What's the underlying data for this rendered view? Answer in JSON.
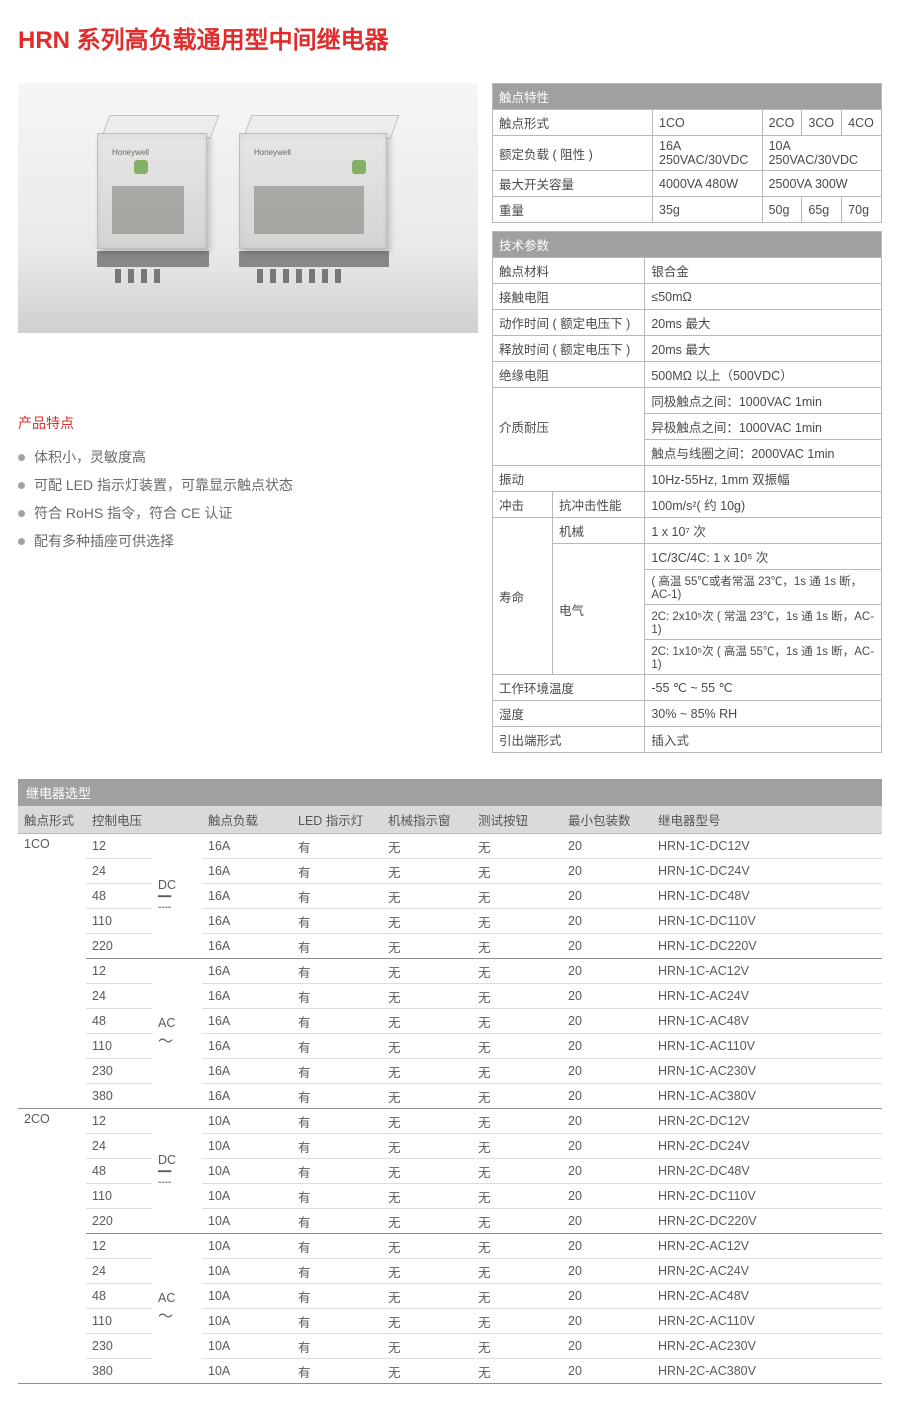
{
  "title": "HRN 系列高负载通用型中间继电器",
  "product_label": "Honeywell",
  "features": {
    "heading": "产品特点",
    "items": [
      "体积小，灵敏度高",
      "可配 LED 指示灯装置，可靠显示触点状态",
      "符合 RoHS 指令，符合 CE 认证",
      "配有多种插座可供选择"
    ]
  },
  "colors": {
    "accent": "#e22b2b",
    "header_bg": "#a0a0a0",
    "subheader_bg": "#dadada",
    "border": "#b8b8b8",
    "text": "#4a4a4a"
  },
  "contact_spec": {
    "header": "触点特性",
    "rows": [
      {
        "label": "触点形式",
        "c1": "1CO",
        "c2": "2CO",
        "c3": "3CO",
        "c4": "4CO"
      },
      {
        "label": "额定负载 ( 阻性 )",
        "left": "16A 250VAC/30VDC",
        "right": "10A 250VAC/30VDC"
      },
      {
        "label": "最大开关容量",
        "left": "4000VA 480W",
        "right": "2500VA 300W"
      },
      {
        "label": "重量",
        "c1": "35g",
        "c2": "50g",
        "c3": "65g",
        "c4": "70g"
      }
    ]
  },
  "tech_spec": {
    "header": "技术参数",
    "material": {
      "label": "触点材料",
      "val": "银合金"
    },
    "contact_res": {
      "label": "接触电阻",
      "val": "≤50mΩ"
    },
    "op_time": {
      "label": "动作时间 ( 额定电压下 )",
      "val": "20ms 最大"
    },
    "rel_time": {
      "label": "释放时间 ( 额定电压下 )",
      "val": "20ms 最大"
    },
    "insulation": {
      "label": "绝缘电阻",
      "val": "500MΩ 以上（500VDC）"
    },
    "dielectric": {
      "label": "介质耐压",
      "v1": "同极触点之间：1000VAC 1min",
      "v2": "异极触点之间：1000VAC 1min",
      "v3": "触点与线圈之间：2000VAC 1min"
    },
    "vibration": {
      "label": "振动",
      "val": "10Hz-55Hz, 1mm 双振幅"
    },
    "shock": {
      "label": "冲击",
      "sub": "抗冲击性能",
      "val": "100m/s²( 约 10g)"
    },
    "life": {
      "label": "寿命",
      "mech_label": "机械",
      "mech_val": "1 x 10⁷ 次",
      "elec_label": "电气",
      "elec_v1": "1C/3C/4C: 1 x 10⁵ 次",
      "elec_v2": "( 高温 55℃或者常温 23℃，1s 通 1s 断，AC-1)",
      "elec_v3": "2C: 2x10⁵次 ( 常温 23℃，1s 通 1s 断，AC-1)",
      "elec_v4": "2C: 1x10⁵次 ( 高温 55℃，1s 通 1s 断，AC-1)"
    },
    "ambient": {
      "label": "工作环境温度",
      "val": "-55 ℃ ~ 55 ℃"
    },
    "humidity": {
      "label": "湿度",
      "val": "30% ~ 85% RH"
    },
    "terminal": {
      "label": "引出端形式",
      "val": "插入式"
    }
  },
  "selection": {
    "header": "继电器选型",
    "columns": [
      "触点形式",
      "控制电压",
      "",
      "触点负载",
      "LED 指示灯",
      "机械指示窗",
      "测试按钮",
      "最小包装数",
      "继电器型号"
    ],
    "groups": [
      {
        "form": "1CO",
        "blocks": [
          {
            "type": "DC",
            "sym": "⎓",
            "rows": [
              {
                "v": "12",
                "load": "16A",
                "led": "有",
                "win": "无",
                "btn": "无",
                "pack": "20",
                "model": "HRN-1C-DC12V"
              },
              {
                "v": "24",
                "load": "16A",
                "led": "有",
                "win": "无",
                "btn": "无",
                "pack": "20",
                "model": "HRN-1C-DC24V"
              },
              {
                "v": "48",
                "load": "16A",
                "led": "有",
                "win": "无",
                "btn": "无",
                "pack": "20",
                "model": "HRN-1C-DC48V"
              },
              {
                "v": "110",
                "load": "16A",
                "led": "有",
                "win": "无",
                "btn": "无",
                "pack": "20",
                "model": "HRN-1C-DC110V"
              },
              {
                "v": "220",
                "load": "16A",
                "led": "有",
                "win": "无",
                "btn": "无",
                "pack": "20",
                "model": "HRN-1C-DC220V"
              }
            ]
          },
          {
            "type": "AC",
            "sym": "～",
            "rows": [
              {
                "v": "12",
                "load": "16A",
                "led": "有",
                "win": "无",
                "btn": "无",
                "pack": "20",
                "model": "HRN-1C-AC12V"
              },
              {
                "v": "24",
                "load": "16A",
                "led": "有",
                "win": "无",
                "btn": "无",
                "pack": "20",
                "model": "HRN-1C-AC24V"
              },
              {
                "v": "48",
                "load": "16A",
                "led": "有",
                "win": "无",
                "btn": "无",
                "pack": "20",
                "model": "HRN-1C-AC48V"
              },
              {
                "v": "110",
                "load": "16A",
                "led": "有",
                "win": "无",
                "btn": "无",
                "pack": "20",
                "model": "HRN-1C-AC110V"
              },
              {
                "v": "230",
                "load": "16A",
                "led": "有",
                "win": "无",
                "btn": "无",
                "pack": "20",
                "model": "HRN-1C-AC230V"
              },
              {
                "v": "380",
                "load": "16A",
                "led": "有",
                "win": "无",
                "btn": "无",
                "pack": "20",
                "model": "HRN-1C-AC380V"
              }
            ]
          }
        ]
      },
      {
        "form": "2CO",
        "blocks": [
          {
            "type": "DC",
            "sym": "⎓",
            "rows": [
              {
                "v": "12",
                "load": "10A",
                "led": "有",
                "win": "无",
                "btn": "无",
                "pack": "20",
                "model": "HRN-2C-DC12V"
              },
              {
                "v": "24",
                "load": "10A",
                "led": "有",
                "win": "无",
                "btn": "无",
                "pack": "20",
                "model": "HRN-2C-DC24V"
              },
              {
                "v": "48",
                "load": "10A",
                "led": "有",
                "win": "无",
                "btn": "无",
                "pack": "20",
                "model": "HRN-2C-DC48V"
              },
              {
                "v": "110",
                "load": "10A",
                "led": "有",
                "win": "无",
                "btn": "无",
                "pack": "20",
                "model": "HRN-2C-DC110V"
              },
              {
                "v": "220",
                "load": "10A",
                "led": "有",
                "win": "无",
                "btn": "无",
                "pack": "20",
                "model": "HRN-2C-DC220V"
              }
            ]
          },
          {
            "type": "AC",
            "sym": "～",
            "rows": [
              {
                "v": "12",
                "load": "10A",
                "led": "有",
                "win": "无",
                "btn": "无",
                "pack": "20",
                "model": "HRN-2C-AC12V"
              },
              {
                "v": "24",
                "load": "10A",
                "led": "有",
                "win": "无",
                "btn": "无",
                "pack": "20",
                "model": "HRN-2C-AC24V"
              },
              {
                "v": "48",
                "load": "10A",
                "led": "有",
                "win": "无",
                "btn": "无",
                "pack": "20",
                "model": "HRN-2C-AC48V"
              },
              {
                "v": "110",
                "load": "10A",
                "led": "有",
                "win": "无",
                "btn": "无",
                "pack": "20",
                "model": "HRN-2C-AC110V"
              },
              {
                "v": "230",
                "load": "10A",
                "led": "有",
                "win": "无",
                "btn": "无",
                "pack": "20",
                "model": "HRN-2C-AC230V"
              },
              {
                "v": "380",
                "load": "10A",
                "led": "有",
                "win": "无",
                "btn": "无",
                "pack": "20",
                "model": "HRN-2C-AC380V"
              }
            ]
          }
        ]
      }
    ]
  }
}
